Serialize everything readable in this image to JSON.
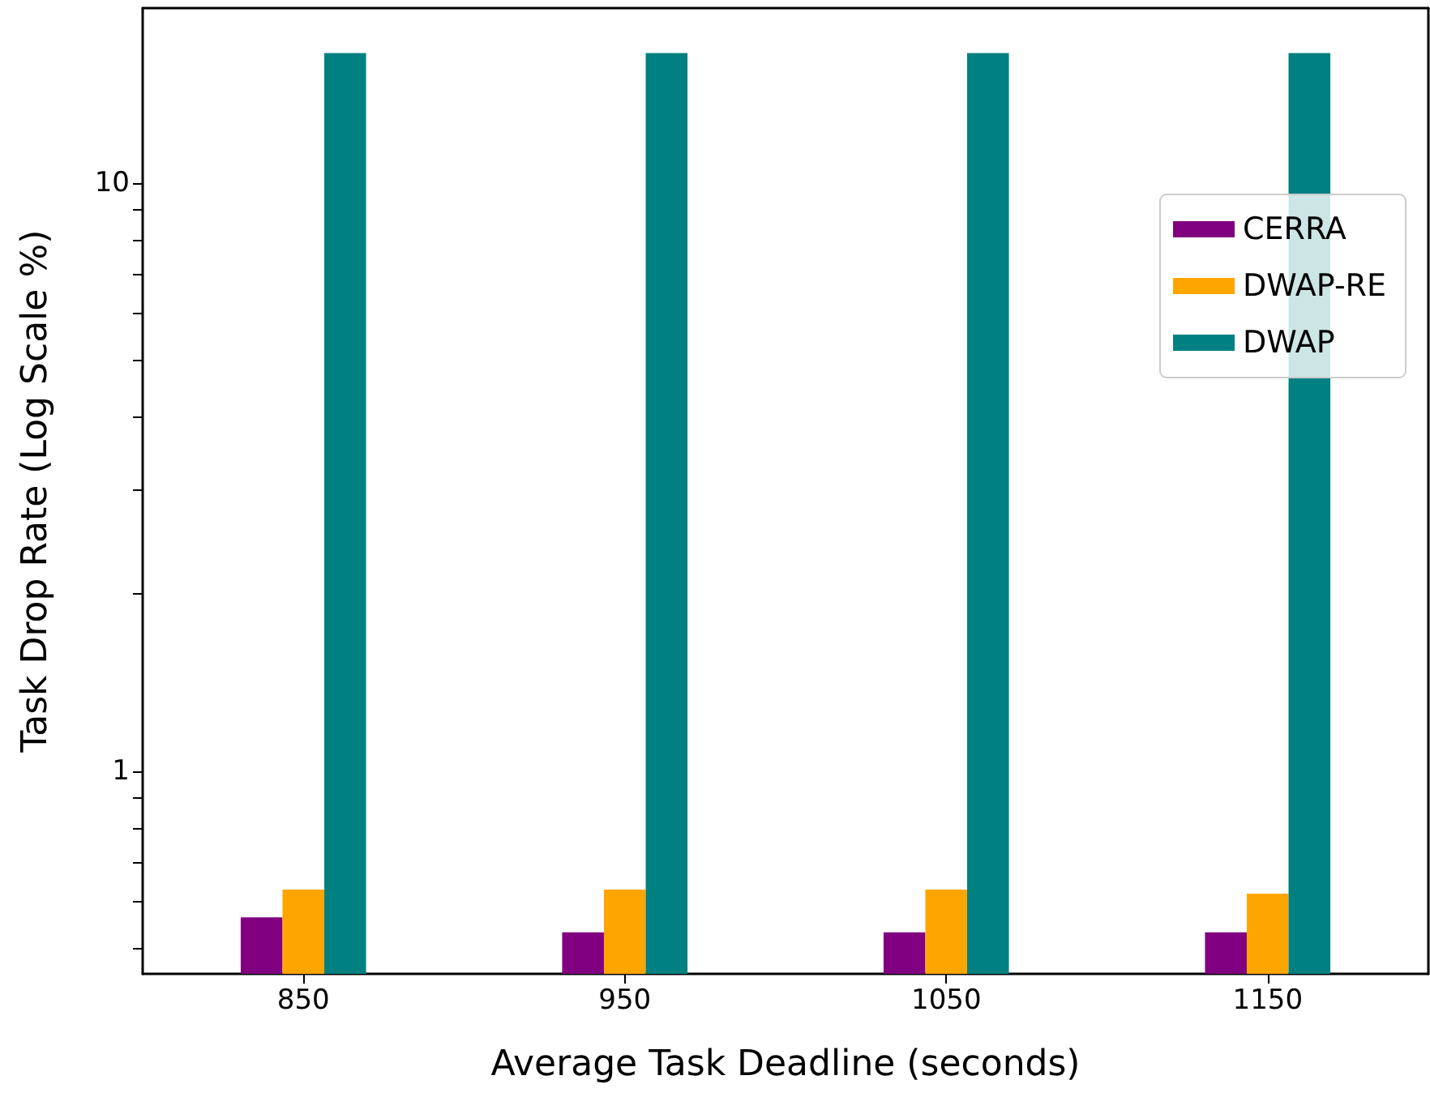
{
  "chart_data": {
    "type": "bar",
    "xlabel": "Average Task Deadline (seconds)",
    "ylabel": "Task Drop Rate (Log Scale %)",
    "categories": [
      "850",
      "950",
      "1050",
      "1150"
    ],
    "series": [
      {
        "name": "CERRA",
        "color": "#800080",
        "values": [
          0.565,
          0.533,
          0.533,
          0.533
        ]
      },
      {
        "name": "DWAP-RE",
        "color": "#ffa500",
        "values": [
          0.63,
          0.63,
          0.63,
          0.62
        ]
      },
      {
        "name": "DWAP",
        "color": "#008080",
        "values": [
          16.6,
          16.6,
          16.6,
          16.6
        ]
      }
    ],
    "log": true,
    "ylim": [
      0.453,
      19.8
    ],
    "yticks": [
      {
        "value": 0.5,
        "label": null
      },
      {
        "value": 0.6,
        "label": null
      },
      {
        "value": 0.7,
        "label": null
      },
      {
        "value": 0.8,
        "label": null
      },
      {
        "value": 0.9,
        "label": null
      },
      1,
      {
        "value": 2,
        "label": null
      },
      {
        "value": 3,
        "label": null
      },
      {
        "value": 4,
        "label": null
      },
      {
        "value": 5,
        "label": null
      },
      {
        "value": 6,
        "label": null
      },
      {
        "value": 7,
        "label": null
      },
      {
        "value": 8,
        "label": null
      },
      {
        "value": 9,
        "label": null
      },
      10
    ],
    "grid": false,
    "legend": "top right"
  }
}
